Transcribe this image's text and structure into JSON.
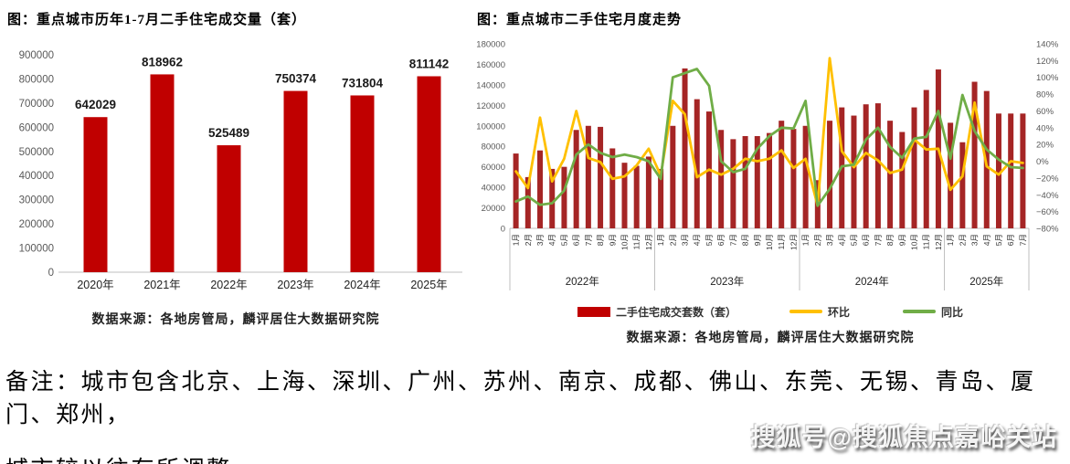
{
  "page": {
    "note_line1": "备注：城市包含北京、上海、深圳、广州、苏州、南京、成都、佛山、东莞、无锡、青岛、厦门、郑州，",
    "note_line2": "城市较以往有所调整。",
    "watermark": "搜狐号@搜狐焦点嘉峪关站"
  },
  "chart_data": [
    {
      "type": "bar",
      "title": "图：重点城市历年1-7月二手住宅成交量（套）",
      "source": "数据来源：各地房管局，麟评居住大数据研究院",
      "categories": [
        "2020年",
        "2021年",
        "2022年",
        "2023年",
        "2024年",
        "2025年"
      ],
      "values": [
        642029,
        818962,
        525489,
        750374,
        731804,
        811142
      ],
      "ylabel": "",
      "xlabel": "",
      "ylim": [
        0,
        900000
      ],
      "ytick_step": 100000,
      "grid": false,
      "bar_color": "#C00000",
      "axis_label_color": "#595959"
    },
    {
      "type": "bar+line",
      "title": "图：重点城市二手住宅月度走势",
      "source": "数据来源：各地房管局，麟评居住大数据研究院",
      "month_labels": [
        "1月",
        "2月",
        "3月",
        "4月",
        "5月",
        "6月",
        "7月",
        "8月",
        "9月",
        "10月",
        "11月",
        "12月"
      ],
      "year_groups": [
        {
          "label": "2022年",
          "months": 12
        },
        {
          "label": "2023年",
          "months": 12
        },
        {
          "label": "2024年",
          "months": 12
        },
        {
          "label": "2025年",
          "months": 7
        }
      ],
      "left_axis": {
        "min": 0,
        "max": 180000,
        "step": 20000
      },
      "right_axis": {
        "min": -80,
        "max": 140,
        "step": 20,
        "suffix": "%"
      },
      "legend_position": "bottom",
      "grid": false,
      "series": [
        {
          "name": "二手住宅成交套数（套）",
          "type": "bar",
          "axis": "left",
          "color": "#A52525",
          "legend_color": "#C00000",
          "values": [
            73000,
            50000,
            76000,
            58000,
            60000,
            96000,
            100000,
            99000,
            78000,
            64000,
            61000,
            70000,
            58000,
            100000,
            156000,
            126000,
            114000,
            96000,
            87000,
            90000,
            90000,
            93000,
            105000,
            97000,
            100000,
            47000,
            105000,
            118000,
            110000,
            121000,
            122000,
            105000,
            94000,
            118000,
            135000,
            155000,
            103000,
            84000,
            143000,
            134000,
            112000,
            112000,
            112000
          ]
        },
        {
          "name": "环比",
          "type": "line",
          "axis": "right",
          "color": "#FFC000",
          "legend_color": "#FFC000",
          "values": [
            -12,
            -32,
            52,
            -24,
            3,
            60,
            4,
            -1,
            -21,
            -18,
            -5,
            15,
            -17,
            72,
            56,
            -19,
            -10,
            -16,
            -9,
            3,
            0,
            3,
            13,
            -8,
            3,
            -53,
            123,
            12,
            -7,
            10,
            1,
            -14,
            -10,
            26,
            14,
            15,
            -34,
            -18,
            70,
            -6,
            -16,
            0,
            -2
          ]
        },
        {
          "name": "同比",
          "type": "line",
          "axis": "right",
          "color": "#70AD47",
          "legend_color": "#70AD47",
          "values": [
            -48,
            -42,
            -52,
            -50,
            -35,
            8,
            20,
            10,
            5,
            8,
            5,
            0,
            -21,
            100,
            105,
            110,
            90,
            0,
            -13,
            -9,
            15,
            30,
            40,
            39,
            72,
            -53,
            -33,
            -6,
            -4,
            26,
            40,
            17,
            4,
            27,
            29,
            60,
            3,
            79,
            36,
            14,
            2,
            -7,
            -8
          ]
        }
      ]
    }
  ]
}
